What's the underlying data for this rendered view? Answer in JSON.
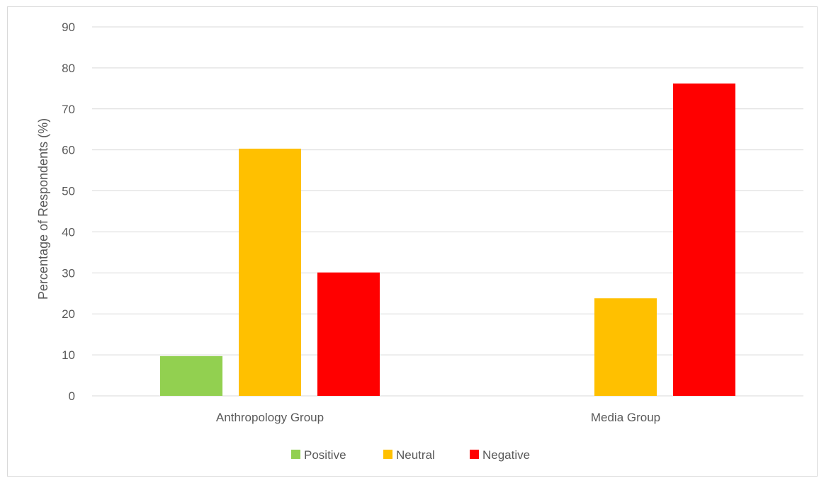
{
  "chart_data": {
    "type": "bar",
    "categories": [
      "Anthropology Group",
      "Media Group"
    ],
    "series": [
      {
        "name": "Positive",
        "color": "#92d050",
        "values": [
          9.7,
          0
        ]
      },
      {
        "name": "Neutral",
        "color": "#ffc000",
        "values": [
          60.3,
          23.8
        ]
      },
      {
        "name": "Negative",
        "color": "#ff0000",
        "values": [
          30.1,
          76.2
        ]
      }
    ],
    "ylabel": "Percentage of Respondents (%)",
    "xlabel": "",
    "ylim": [
      0,
      90
    ],
    "yticks": [
      "0",
      "10",
      "20",
      "30",
      "40",
      "50",
      "60",
      "70",
      "80",
      "90"
    ],
    "grid": true,
    "legend_position": "bottom",
    "colors": {
      "gridline": "#d9d9d9",
      "text": "#595959",
      "frame": "#d9d9d9"
    }
  }
}
